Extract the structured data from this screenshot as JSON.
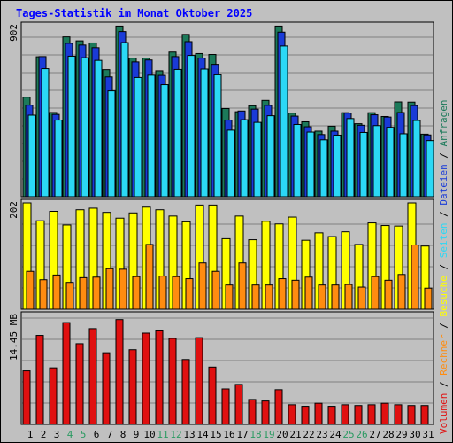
{
  "title": "Tages-Statistik im Monat Oktober 2025",
  "chart_data": {
    "type": "bar",
    "x": [
      "1",
      "2",
      "3",
      "4",
      "5",
      "6",
      "7",
      "8",
      "9",
      "10",
      "11",
      "12",
      "13",
      "14",
      "15",
      "16",
      "17",
      "18",
      "19",
      "20",
      "21",
      "22",
      "23",
      "24",
      "25",
      "26",
      "27",
      "28",
      "29",
      "30",
      "31"
    ],
    "weekend_days": [
      "4",
      "5",
      "11",
      "12",
      "18",
      "19",
      "25",
      "26"
    ],
    "colors": {
      "anfragen": "#1c7a5a",
      "dateien": "#1a3bd8",
      "seiten": "#2bd8f5",
      "besuche": "#ffff00",
      "rechner": "#ff8c10",
      "volumen": "#e01010",
      "weekend_label": "#2b9a62",
      "weekday_label": "#000000",
      "title": "#0000ff"
    },
    "panels": [
      {
        "id": "top",
        "ylabel": "902",
        "ymax": 902,
        "series": [
          {
            "name": "Anfragen",
            "values": [
              525,
              738,
              444,
              843,
              822,
              811,
              670,
              900,
              731,
              731,
              664,
              763,
              856,
              755,
              750,
              465,
              448,
              480,
              508,
              900,
              441,
              395,
              346,
              372,
              443,
              385,
              443,
              423,
              500,
              499,
              330
            ]
          },
          {
            "name": "Dateien",
            "values": [
              483,
              739,
              434,
              809,
              800,
              786,
              632,
              871,
              711,
              721,
              640,
              739,
              818,
              731,
              698,
              404,
              452,
              462,
              482,
              868,
              425,
              369,
              328,
              346,
              441,
              377,
              432,
              420,
              444,
              481,
              326
            ]
          },
          {
            "name": "Seiten",
            "values": [
              430,
              675,
              404,
              741,
              733,
              719,
              558,
              813,
              629,
              641,
              591,
              671,
              745,
              673,
              643,
              351,
              406,
              392,
              427,
              795,
              381,
              341,
              300,
              325,
              412,
              339,
              375,
              366,
              332,
              402,
              296
            ]
          }
        ]
      },
      {
        "id": "middle",
        "ylabel": "202",
        "ymax": 202,
        "series": [
          {
            "name": "Besuche",
            "values": [
              202,
              168,
              186,
              160,
              189,
              192,
              184,
              173,
              183,
              194,
              189,
              177,
              166,
              198,
              198,
              134,
              177,
              132,
              167,
              162,
              175,
              131,
              145,
              138,
              147,
              123,
              164,
              159,
              158,
              202,
              120
            ]
          },
          {
            "name": "Rechner",
            "values": [
              72,
              56,
              65,
              51,
              60,
              61,
              77,
              76,
              62,
              123,
              63,
              62,
              58,
              88,
              72,
              46,
              88,
              46,
              46,
              58,
              55,
              61,
              46,
              46,
              47,
              42,
              62,
              55,
              66,
              122,
              40
            ]
          }
        ]
      },
      {
        "id": "bottom",
        "ylabel": "14.45 MB",
        "ymax": 14.45,
        "series": [
          {
            "name": "Volumen",
            "values": [
              7.1,
              11.8,
              7.5,
              13.5,
              10.7,
              12.7,
              9.5,
              13.9,
              9.9,
              12.1,
              12.4,
              11.4,
              8.6,
              11.5,
              7.6,
              4.7,
              5.3,
              3.3,
              3.1,
              4.6,
              2.6,
              2.4,
              2.8,
              2.4,
              2.6,
              2.5,
              2.6,
              2.8,
              2.6,
              2.5,
              2.5
            ]
          }
        ]
      }
    ],
    "legend": {
      "position": "right-vertical",
      "items": [
        "Volumen",
        "Rechner",
        "Besuche",
        "Seiten",
        "Dateien",
        "Anfragen"
      ],
      "separator": "/"
    }
  }
}
